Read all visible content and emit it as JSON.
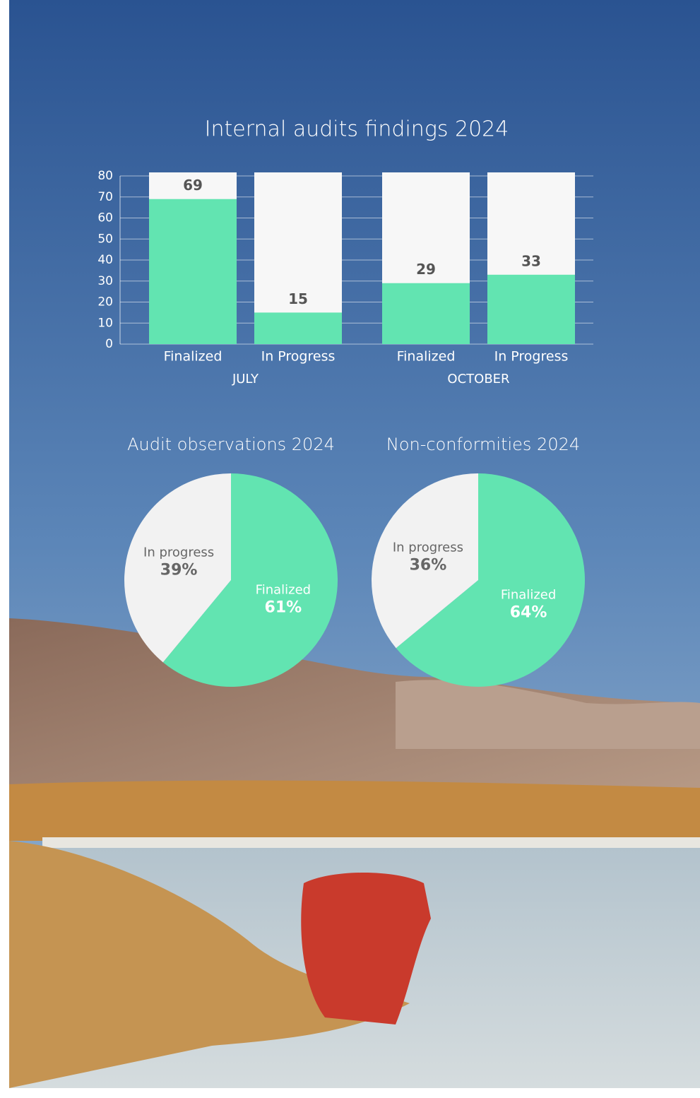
{
  "chart_data": [
    {
      "type": "bar",
      "title": "Internal audits findings 2024",
      "groups": [
        {
          "name": "JULY",
          "categories": [
            "Finalized",
            "In Progress"
          ],
          "values": [
            69,
            15
          ]
        },
        {
          "name": "OCTOBER",
          "categories": [
            "Finalized",
            "In Progress"
          ],
          "values": [
            29,
            33
          ]
        }
      ],
      "color": "#62e4b1",
      "backdrop_color": "#f7f7f7",
      "ylim": [
        0,
        80
      ],
      "yticks": [
        0,
        10,
        20,
        30,
        40,
        50,
        60,
        70,
        80
      ],
      "grid": true
    },
    {
      "type": "pie",
      "title": "Audit observations 2024",
      "categories": [
        "Finalized",
        "In progress"
      ],
      "values": [
        61,
        39
      ],
      "value_labels": [
        "61%",
        "39%"
      ],
      "colors": [
        "#62e4b1",
        "#f2f2f2"
      ]
    },
    {
      "type": "pie",
      "title": "Non-conformities 2024",
      "categories": [
        "Finalized",
        "In progress"
      ],
      "values": [
        64,
        36
      ],
      "value_labels": [
        "64%",
        "36%"
      ],
      "colors": [
        "#62e4b1",
        "#f2f2f2"
      ]
    }
  ]
}
